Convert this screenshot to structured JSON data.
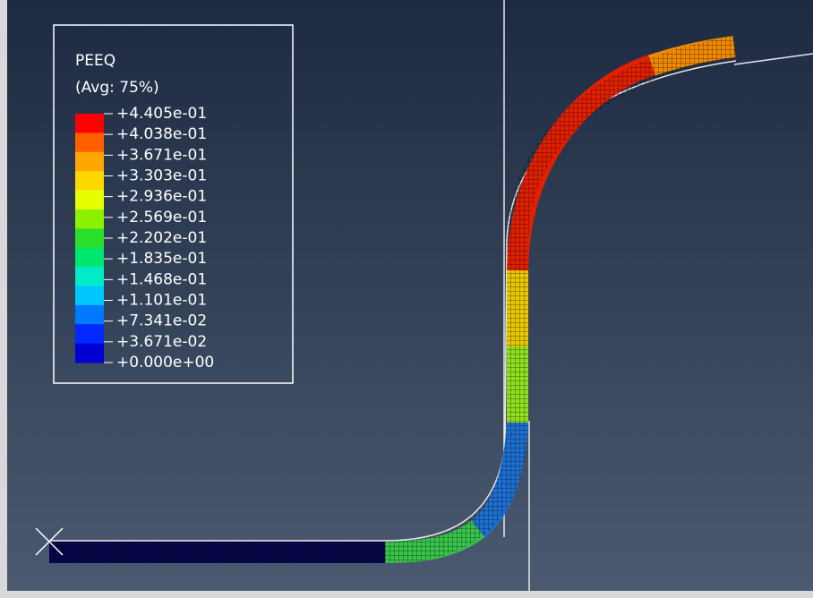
{
  "legend": {
    "title": "PEEQ",
    "subtitle": "(Avg: 75%)",
    "labels": [
      "+4.405e-01",
      "+4.038e-01",
      "+3.671e-01",
      "+3.303e-01",
      "+2.936e-01",
      "+2.569e-01",
      "+2.202e-01",
      "+1.835e-01",
      "+1.468e-01",
      "+1.101e-01",
      "+7.341e-02",
      "+3.671e-02",
      "+0.000e+00"
    ],
    "colors": [
      "#ff0000",
      "#ff5f00",
      "#ffa500",
      "#ffd700",
      "#e6ff00",
      "#8cf000",
      "#2be02b",
      "#00e66e",
      "#00ebc8",
      "#00c8ff",
      "#0078ff",
      "#0028ff",
      "#0000d2"
    ]
  }
}
